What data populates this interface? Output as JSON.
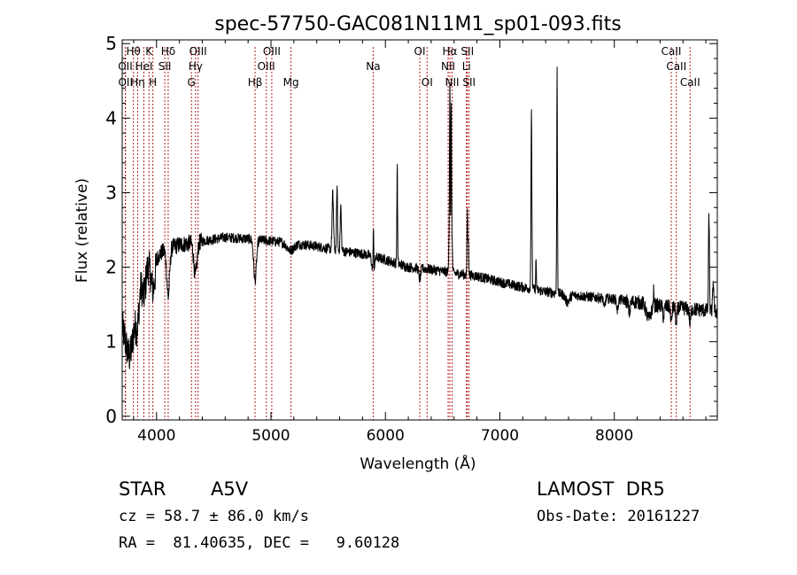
{
  "chart_data": {
    "type": "line",
    "title": "spec-57750-GAC081N11M1_sp01-093.fits",
    "xlabel": "Wavelength (Å)",
    "ylabel": "Flux (relative)",
    "xlim": [
      3700,
      8900
    ],
    "ylim": [
      -0.05,
      5.05
    ],
    "xticks": [
      4000,
      5000,
      6000,
      7000,
      8000
    ],
    "yticks": [
      0,
      1,
      2,
      3,
      4,
      5
    ],
    "grid": false,
    "line_color": "#000000",
    "marker_color": "#b22222",
    "lines": [
      {
        "label": "Hθ",
        "x": 3798,
        "row": 0
      },
      {
        "label": "OII",
        "x": 3727,
        "row": 1
      },
      {
        "label": "OII",
        "x": 3729,
        "row": 2
      },
      {
        "label": "Hη",
        "x": 3835,
        "row": 2
      },
      {
        "label": "HeI",
        "x": 3889,
        "row": 1
      },
      {
        "label": "K",
        "x": 3934,
        "row": 0
      },
      {
        "label": "H",
        "x": 3968,
        "row": 2
      },
      {
        "label": "Hδ",
        "x": 4102,
        "row": 0
      },
      {
        "label": "SII",
        "x": 4072,
        "row": 1
      },
      {
        "label": "OIII",
        "x": 4363,
        "row": 0
      },
      {
        "label": "Hγ",
        "x": 4341,
        "row": 1
      },
      {
        "label": "G",
        "x": 4305,
        "row": 2
      },
      {
        "label": "Hβ",
        "x": 4861,
        "row": 2
      },
      {
        "label": "OIII",
        "x": 5007,
        "row": 0
      },
      {
        "label": "OIII",
        "x": 4959,
        "row": 1
      },
      {
        "label": "Mg",
        "x": 5175,
        "row": 2
      },
      {
        "label": "Na",
        "x": 5893,
        "row": 1
      },
      {
        "label": "OI",
        "x": 6300,
        "row": 0
      },
      {
        "label": "OI",
        "x": 6364,
        "row": 2
      },
      {
        "label": "Hα",
        "x": 6563,
        "row": 0
      },
      {
        "label": "NII",
        "x": 6548,
        "row": 1
      },
      {
        "label": "NII",
        "x": 6583,
        "row": 2
      },
      {
        "label": "SII",
        "x": 6716,
        "row": 0
      },
      {
        "label": "Li",
        "x": 6708,
        "row": 1
      },
      {
        "label": "SII",
        "x": 6731,
        "row": 2
      },
      {
        "label": "CaII",
        "x": 8498,
        "row": 0
      },
      {
        "label": "CaII",
        "x": 8542,
        "row": 1
      },
      {
        "label": "CaII",
        "x": 8662,
        "row": 2
      }
    ],
    "continuum": [
      [
        3700,
        1.35
      ],
      [
        3800,
        1.75
      ],
      [
        3900,
        2.0
      ],
      [
        4000,
        2.15
      ],
      [
        4100,
        2.25
      ],
      [
        4200,
        2.3
      ],
      [
        4400,
        2.35
      ],
      [
        4600,
        2.4
      ],
      [
        4800,
        2.38
      ],
      [
        5000,
        2.35
      ],
      [
        5200,
        2.32
      ],
      [
        5400,
        2.28
      ],
      [
        5600,
        2.22
      ],
      [
        5800,
        2.18
      ],
      [
        6000,
        2.1
      ],
      [
        6200,
        2.0
      ],
      [
        6400,
        1.97
      ],
      [
        6600,
        1.92
      ],
      [
        6800,
        1.88
      ],
      [
        7000,
        1.8
      ],
      [
        7200,
        1.73
      ],
      [
        7400,
        1.67
      ],
      [
        7600,
        1.63
      ],
      [
        7800,
        1.6
      ],
      [
        8000,
        1.57
      ],
      [
        8200,
        1.53
      ],
      [
        8400,
        1.48
      ],
      [
        8600,
        1.45
      ],
      [
        8800,
        1.42
      ],
      [
        8900,
        1.4
      ]
    ],
    "features": [
      [
        3770,
        -0.8,
        40
      ],
      [
        3835,
        -0.4,
        15
      ],
      [
        3890,
        -0.35,
        15
      ],
      [
        3970,
        -0.4,
        18
      ],
      [
        4102,
        -0.65,
        12
      ],
      [
        4340,
        -0.45,
        14
      ],
      [
        4861,
        -0.55,
        12
      ],
      [
        5170,
        -0.1,
        30
      ],
      [
        5540,
        0.75,
        6
      ],
      [
        5577,
        0.85,
        4
      ],
      [
        5610,
        0.6,
        5
      ],
      [
        5893,
        -0.25,
        10
      ],
      [
        5895,
        0.6,
        3
      ],
      [
        6103,
        1.35,
        3
      ],
      [
        6300,
        -0.15,
        8
      ],
      [
        6555,
        0.45,
        3
      ],
      [
        6563,
        2.65,
        3
      ],
      [
        6575,
        2.2,
        3
      ],
      [
        6582,
        0.4,
        4
      ],
      [
        6716,
        0.9,
        3
      ],
      [
        6725,
        0.5,
        3
      ],
      [
        7276,
        2.35,
        4
      ],
      [
        7316,
        0.4,
        3
      ],
      [
        7500,
        3.05,
        3
      ],
      [
        7590,
        -0.1,
        18
      ],
      [
        7913,
        -0.15,
        6
      ],
      [
        8027,
        -0.15,
        6
      ],
      [
        8132,
        -0.15,
        8
      ],
      [
        8300,
        -0.2,
        20
      ],
      [
        8344,
        0.2,
        3
      ],
      [
        8430,
        -0.15,
        6
      ],
      [
        8498,
        -0.2,
        6
      ],
      [
        8542,
        -0.25,
        6
      ],
      [
        8662,
        -0.2,
        6
      ],
      [
        8827,
        1.3,
        4
      ],
      [
        8865,
        0.4,
        5
      ]
    ]
  },
  "info": {
    "object_class": "STAR",
    "subclass": "A5V",
    "survey": "LAMOST  DR5",
    "redshift": "cz = 58.7 ± 86.0 km/s",
    "obs_date": "Obs-Date: 20161227",
    "coords": "RA =  81.40635, DEC =   9.60128"
  }
}
